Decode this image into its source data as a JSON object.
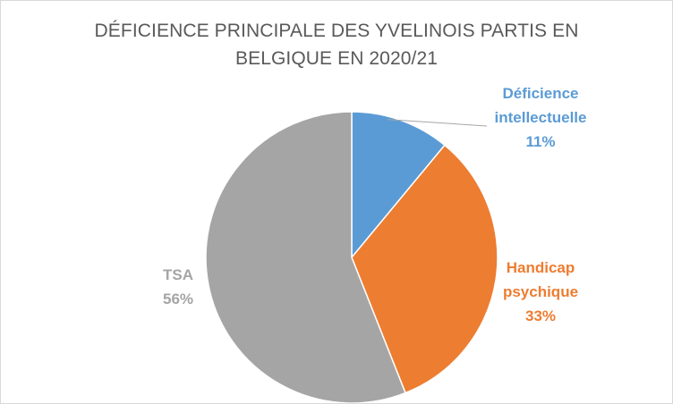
{
  "chart_data": {
    "type": "pie",
    "title": "DÉFICIENCE PRINCIPALE DES YVELINOIS PARTIS EN BELGIQUE EN 2020/21",
    "title_lines": [
      "DÉFICIENCE PRINCIPALE DES YVELINOIS PARTIS EN",
      "BELGIQUE EN 2020/21"
    ],
    "legend": "none",
    "slices": [
      {
        "label": "Déficience intellectuelle",
        "label_lines": [
          "Déficience",
          "intellectuelle"
        ],
        "value": 11,
        "value_text": "11%",
        "color": "#5b9bd5"
      },
      {
        "label": "Handicap psychique",
        "label_lines": [
          "Handicap",
          "psychique"
        ],
        "value": 33,
        "value_text": "33%",
        "color": "#ed7d31"
      },
      {
        "label": "TSA",
        "label_lines": [
          "TSA"
        ],
        "value": 56,
        "value_text": "56%",
        "color": "#a5a5a5"
      }
    ]
  }
}
